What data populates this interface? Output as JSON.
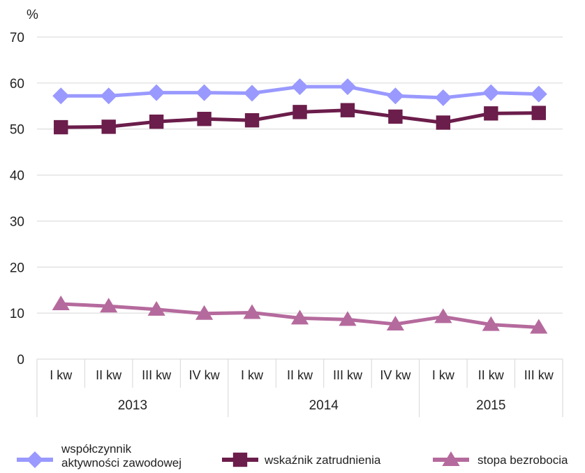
{
  "chart_data": {
    "type": "line",
    "ylabel": "%",
    "ylim": [
      0,
      70
    ],
    "yticks": [
      0,
      10,
      20,
      30,
      40,
      50,
      60,
      70
    ],
    "grid": true,
    "legend_position": "bottom",
    "categories": [
      "I kw",
      "II kw",
      "III kw",
      "IV kw",
      "I kw",
      "II kw",
      "III kw",
      "IV kw",
      "I kw",
      "II kw",
      "III kw"
    ],
    "groups": [
      {
        "label": "2013",
        "count": 4
      },
      {
        "label": "2014",
        "count": 4
      },
      {
        "label": "2015",
        "count": 3
      }
    ],
    "series": [
      {
        "name": "współczynnik aktywności zawodowej",
        "name_lines": [
          "współczynnik",
          "aktywności zawodowej"
        ],
        "color": "#9999ff",
        "marker": "diamond",
        "values": [
          57.2,
          57.2,
          57.9,
          57.9,
          57.8,
          59.2,
          59.2,
          57.2,
          56.8,
          57.9,
          57.6
        ]
      },
      {
        "name": "wskaźnik zatrudnienia",
        "name_lines": [
          "wskaźnik zatrudnienia"
        ],
        "color": "#6b1d4b",
        "marker": "square",
        "values": [
          50.4,
          50.5,
          51.6,
          52.2,
          51.9,
          53.7,
          54.1,
          52.7,
          51.4,
          53.4,
          53.5
        ]
      },
      {
        "name": "stopa bezrobocia",
        "name_lines": [
          "stopa bezrobocia"
        ],
        "color": "#b56a9d",
        "marker": "triangle",
        "values": [
          12.0,
          11.5,
          10.8,
          9.9,
          10.1,
          8.9,
          8.6,
          7.6,
          9.2,
          7.5,
          6.9
        ]
      }
    ]
  }
}
